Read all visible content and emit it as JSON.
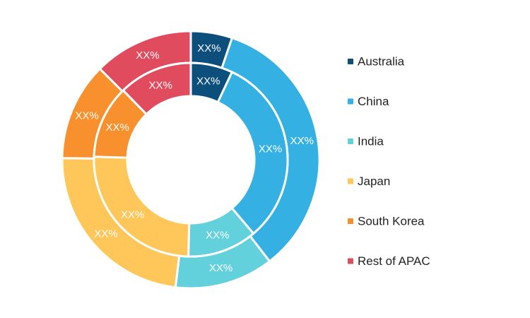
{
  "chart_data": {
    "type": "pie",
    "title": "",
    "categories": [
      "Australia",
      "China",
      "India",
      "Japan",
      "South Korea",
      "Rest of APAC"
    ],
    "colors": [
      "#0d4f7c",
      "#34b0e3",
      "#62d1dc",
      "#ffc65a",
      "#f7902d",
      "#e04b5d"
    ],
    "legend_position": "right",
    "rings": [
      {
        "name": "",
        "ring": "outer",
        "values": [
          5.2,
          34.3,
          12.4,
          23.3,
          12.3,
          12.5
        ],
        "labels": [
          "XX%",
          "XX%",
          "XX%",
          "XX%",
          "XX%",
          "XX%"
        ]
      },
      {
        "name": "",
        "ring": "inner",
        "values": [
          7.0,
          31.8,
          11.6,
          25.1,
          12.2,
          12.3
        ],
        "labels": [
          "XX%",
          "XX%",
          "XX%",
          "XX%",
          "XX%",
          "XX%"
        ]
      }
    ]
  }
}
